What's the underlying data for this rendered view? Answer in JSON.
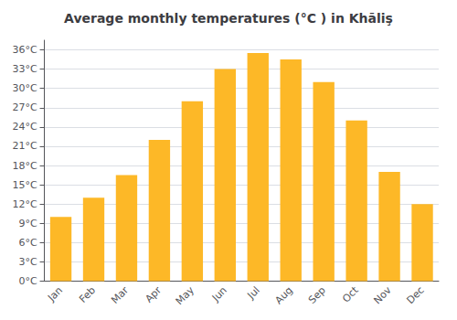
{
  "chart_data": {
    "type": "bar",
    "title": "Average monthly temperatures (°C ) in Khāliş",
    "categories": [
      "Jan",
      "Feb",
      "Mar",
      "Apr",
      "May",
      "Jun",
      "Jul",
      "Aug",
      "Sep",
      "Oct",
      "Nov",
      "Dec"
    ],
    "values": [
      10.0,
      13.0,
      16.5,
      22.0,
      28.0,
      33.0,
      35.5,
      34.5,
      31.0,
      25.0,
      17.0,
      12.0
    ],
    "color": "#FDB827",
    "ylim": [
      0,
      37.5
    ],
    "yticks": [
      {
        "value": 0,
        "label": "0°C"
      },
      {
        "value": 3,
        "label": "3°C"
      },
      {
        "value": 6,
        "label": "6°C"
      },
      {
        "value": 9,
        "label": "9°C"
      },
      {
        "value": 12,
        "label": "12°C"
      },
      {
        "value": 15,
        "label": "15°C"
      },
      {
        "value": 18,
        "label": "18°C"
      },
      {
        "value": 21,
        "label": "21°C"
      },
      {
        "value": 24,
        "label": "24°C"
      },
      {
        "value": 27,
        "label": "27°C"
      },
      {
        "value": 30,
        "label": "30°C"
      },
      {
        "value": 33,
        "label": "33°C"
      },
      {
        "value": 36,
        "label": "36°C"
      }
    ],
    "grid": true
  }
}
